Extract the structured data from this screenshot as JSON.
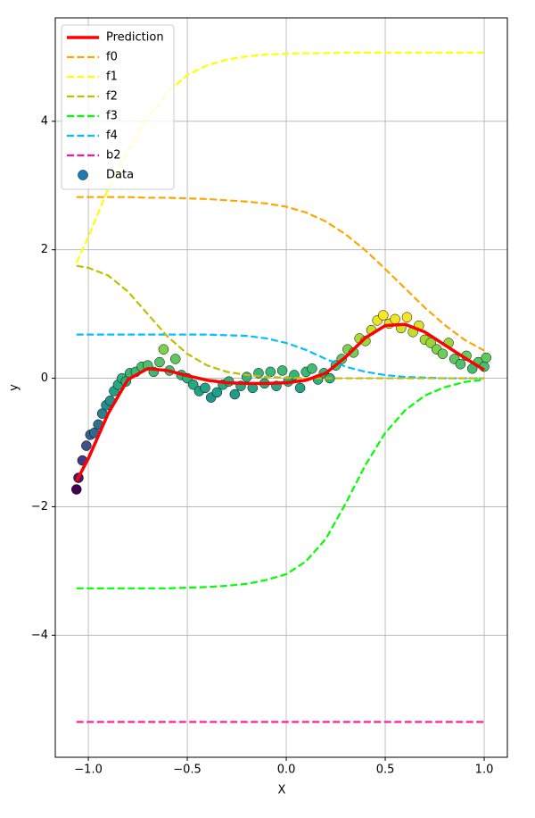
{
  "chart_data": {
    "type": "line",
    "xlabel": "X",
    "ylabel": "y",
    "xlim": [
      -1.167,
      1.117
    ],
    "ylim": [
      -5.9,
      5.61
    ],
    "xticks": [
      {
        "value": -1.0,
        "label": "−1.0"
      },
      {
        "value": -0.5,
        "label": "−0.5"
      },
      {
        "value": 0.0,
        "label": "0.0"
      },
      {
        "value": 0.5,
        "label": "0.5"
      },
      {
        "value": 1.0,
        "label": "1.0"
      }
    ],
    "yticks": [
      {
        "value": -4,
        "label": "−4"
      },
      {
        "value": -2,
        "label": "−2"
      },
      0,
      2,
      4
    ],
    "grid": true,
    "legend": "upper left",
    "x": [
      -1.06,
      -1.0,
      -0.9,
      -0.8,
      -0.7,
      -0.6,
      -0.5,
      -0.4,
      -0.3,
      -0.2,
      -0.1,
      0.0,
      0.1,
      0.2,
      0.3,
      0.4,
      0.5,
      0.6,
      0.7,
      0.8,
      0.9,
      1.0
    ],
    "series": [
      {
        "name": "Prediction",
        "type": "line",
        "color": "#ff0000",
        "linestyle": "solid",
        "linewidth": 3.5,
        "values": [
          -1.6,
          -1.25,
          -0.55,
          -0.02,
          0.15,
          0.12,
          0.04,
          -0.03,
          -0.07,
          -0.08,
          -0.08,
          -0.07,
          -0.03,
          0.08,
          0.33,
          0.63,
          0.82,
          0.84,
          0.72,
          0.52,
          0.32,
          0.13
        ]
      },
      {
        "name": "f0",
        "type": "line",
        "color": "#ffa500",
        "linestyle": "dashed",
        "linewidth": 2.2,
        "values": [
          2.82,
          2.82,
          2.82,
          2.82,
          2.81,
          2.81,
          2.8,
          2.79,
          2.77,
          2.75,
          2.72,
          2.67,
          2.58,
          2.44,
          2.24,
          1.99,
          1.7,
          1.4,
          1.1,
          0.83,
          0.6,
          0.43
        ]
      },
      {
        "name": "f1",
        "type": "line",
        "color": "#ffff00",
        "linestyle": "dashed",
        "linewidth": 2.2,
        "values": [
          1.8,
          2.2,
          2.95,
          3.55,
          4.05,
          4.45,
          4.72,
          4.87,
          4.96,
          5.01,
          5.04,
          5.05,
          5.06,
          5.06,
          5.07,
          5.07,
          5.07,
          5.07,
          5.07,
          5.07,
          5.07,
          5.07
        ]
      },
      {
        "name": "f2",
        "type": "line",
        "color": "#bfbf00",
        "linestyle": "dashed",
        "linewidth": 2.2,
        "values": [
          1.75,
          1.72,
          1.6,
          1.35,
          1.0,
          0.65,
          0.38,
          0.2,
          0.1,
          0.05,
          0.02,
          0.01,
          0,
          0,
          0,
          0,
          0,
          0,
          0,
          0,
          0,
          0
        ]
      },
      {
        "name": "f3",
        "type": "line",
        "color": "#00ff00",
        "linestyle": "dashed",
        "linewidth": 2.2,
        "values": [
          -3.27,
          -3.27,
          -3.27,
          -3.27,
          -3.27,
          -3.27,
          -3.26,
          -3.25,
          -3.23,
          -3.2,
          -3.14,
          -3.05,
          -2.85,
          -2.5,
          -1.95,
          -1.35,
          -0.85,
          -0.5,
          -0.27,
          -0.14,
          -0.06,
          -0.02
        ]
      },
      {
        "name": "f4",
        "type": "line",
        "color": "#00bfff",
        "linestyle": "dashed",
        "linewidth": 2.2,
        "values": [
          0.68,
          0.68,
          0.68,
          0.68,
          0.68,
          0.68,
          0.68,
          0.68,
          0.67,
          0.66,
          0.62,
          0.55,
          0.44,
          0.3,
          0.18,
          0.1,
          0.05,
          0.02,
          0.01,
          0,
          0,
          0
        ]
      },
      {
        "name": "b2",
        "type": "line",
        "color": "#ff1493",
        "linestyle": "dashed",
        "linewidth": 2.2,
        "values": [
          -5.35,
          -5.35,
          -5.35,
          -5.35,
          -5.35,
          -5.35,
          -5.35,
          -5.35,
          -5.35,
          -5.35,
          -5.35,
          -5.35,
          -5.35,
          -5.35,
          -5.35,
          -5.35,
          -5.35,
          -5.35,
          -5.35,
          -5.35,
          -5.35,
          -5.35
        ]
      },
      {
        "name": "Data",
        "type": "scatter",
        "color": "#1f77b4",
        "cmap": "viridis",
        "x": [
          -1.06,
          -1.05,
          -1.03,
          -1.01,
          -0.99,
          -0.97,
          -0.95,
          -0.93,
          -0.91,
          -0.89,
          -0.87,
          -0.85,
          -0.83,
          -0.81,
          -0.79,
          -0.76,
          -0.73,
          -0.7,
          -0.67,
          -0.64,
          -0.62,
          -0.59,
          -0.56,
          -0.53,
          -0.5,
          -0.47,
          -0.44,
          -0.41,
          -0.38,
          -0.35,
          -0.32,
          -0.29,
          -0.26,
          -0.23,
          -0.2,
          -0.17,
          -0.14,
          -0.11,
          -0.08,
          -0.05,
          -0.02,
          0.01,
          0.04,
          0.07,
          0.1,
          0.13,
          0.16,
          0.19,
          0.22,
          0.25,
          0.28,
          0.31,
          0.34,
          0.37,
          0.4,
          0.43,
          0.46,
          0.49,
          0.52,
          0.55,
          0.58,
          0.61,
          0.64,
          0.67,
          0.7,
          0.73,
          0.76,
          0.79,
          0.82,
          0.85,
          0.88,
          0.91,
          0.94,
          0.97,
          1.0,
          1.01
        ],
        "values": [
          -1.73,
          -1.55,
          -1.28,
          -1.05,
          -0.88,
          -0.85,
          -0.72,
          -0.55,
          -0.42,
          -0.35,
          -0.2,
          -0.1,
          0.0,
          -0.05,
          0.08,
          0.1,
          0.18,
          0.2,
          0.1,
          0.25,
          0.45,
          0.12,
          0.3,
          0.05,
          0.0,
          -0.1,
          -0.2,
          -0.15,
          -0.3,
          -0.22,
          -0.1,
          -0.05,
          -0.25,
          -0.12,
          0.02,
          -0.15,
          0.08,
          -0.08,
          0.1,
          -0.12,
          0.12,
          -0.05,
          0.05,
          -0.15,
          0.1,
          0.15,
          -0.02,
          0.08,
          0.0,
          0.2,
          0.3,
          0.45,
          0.4,
          0.62,
          0.58,
          0.75,
          0.9,
          0.98,
          0.85,
          0.92,
          0.78,
          0.95,
          0.72,
          0.82,
          0.6,
          0.55,
          0.45,
          0.38,
          0.55,
          0.3,
          0.22,
          0.35,
          0.15,
          0.25,
          0.18,
          0.32
        ]
      }
    ]
  }
}
